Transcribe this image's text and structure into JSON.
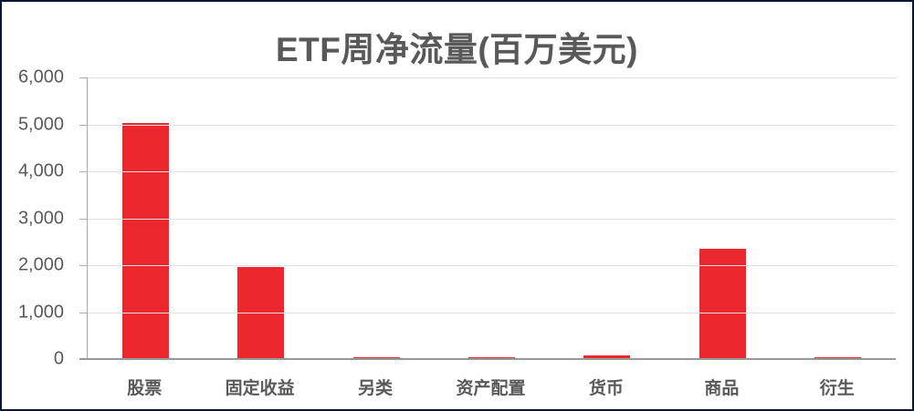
{
  "chart_data": {
    "type": "bar",
    "title": "ETF周净流量(百万美元)",
    "categories": [
      "股票",
      "固定收益",
      "另类",
      "资产配置",
      "货币",
      "商品",
      "衍生"
    ],
    "values": [
      5020,
      1970,
      40,
      35,
      80,
      2340,
      40
    ],
    "xlabel": "",
    "ylabel": "",
    "ylim": [
      0,
      6000
    ],
    "ytick_step": 1000,
    "ytick_labels": [
      "6,000",
      "5,000",
      "4,000",
      "3,000",
      "2,000",
      "1,000",
      "0"
    ],
    "grid": true,
    "legend": "none",
    "bar_color": "#ec282f"
  },
  "colors": {
    "bar": "#ec282f",
    "title_text": "#595959",
    "axis_text": "#595959",
    "gridline": "#e0e0e0",
    "axis_line": "#aaaaaa",
    "baseline": "#999999",
    "frame_border": "#061638",
    "background": "#ffffff"
  }
}
